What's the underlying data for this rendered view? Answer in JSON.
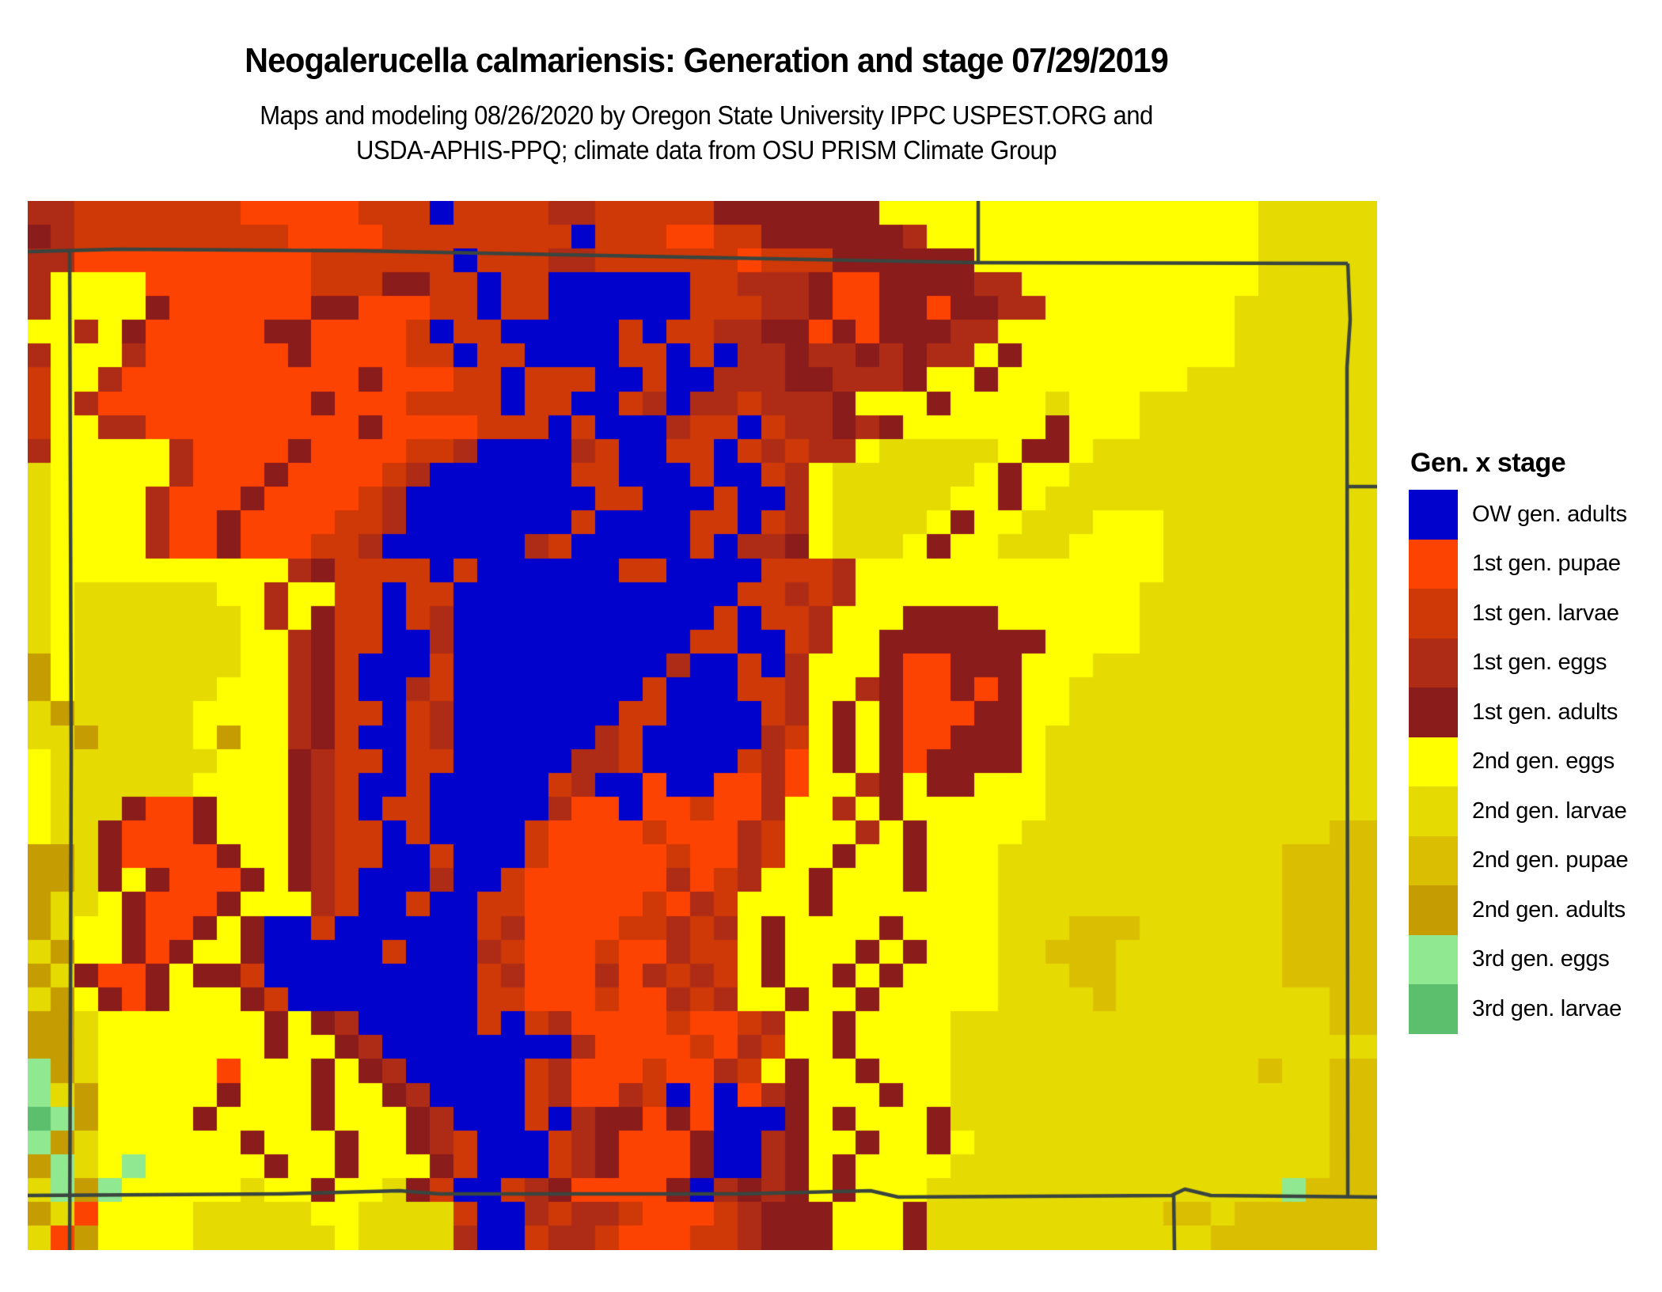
{
  "header": {
    "title": "Neogalerucella calmariensis: Generation and stage 07/29/2019",
    "subtitle_line1": "Maps and modeling 08/26/2020 by Oregon State University IPPC USPEST.ORG and",
    "subtitle_line2": "USDA-APHIS-PPQ; climate data from OSU PRISM Climate Group"
  },
  "legend": {
    "title": "Gen. x stage",
    "items": [
      {
        "label": "OW gen. adults",
        "color": "#0202CD",
        "palette_key": "B"
      },
      {
        "label": "1st gen. pupae",
        "color": "#FD4301",
        "palette_key": "P"
      },
      {
        "label": "1st gen. larvae",
        "color": "#CF3807",
        "palette_key": "L"
      },
      {
        "label": "1st gen. eggs",
        "color": "#AE2C16",
        "palette_key": "E"
      },
      {
        "label": "1st gen. adults",
        "color": "#8B1C1C",
        "palette_key": "A"
      },
      {
        "label": "2nd gen. eggs",
        "color": "#FFFF00",
        "palette_key": "y"
      },
      {
        "label": "2nd gen. larvae",
        "color": "#E6DA03",
        "palette_key": "l"
      },
      {
        "label": "2nd gen. pupae",
        "color": "#DABE02",
        "palette_key": "p"
      },
      {
        "label": "2nd gen. adults",
        "color": "#C59C02",
        "palette_key": "a"
      },
      {
        "label": "3rd gen. eggs",
        "color": "#90E890",
        "palette_key": "g"
      },
      {
        "label": "3rd gen. larvae",
        "color": "#5CBF6E",
        "palette_key": "G"
      }
    ]
  },
  "map": {
    "background": "#FFFFFF",
    "border_color": "#3A453F",
    "border_width": 4.5,
    "palette": {
      "B": "#0202CD",
      "P": "#FD4301",
      "L": "#CF3807",
      "E": "#AE2C16",
      "A": "#8B1C1C",
      "y": "#FFFF00",
      "l": "#E6DA03",
      "p": "#DABE02",
      "a": "#C59C02",
      "g": "#90E890",
      "G": "#5CBF6E"
    },
    "grid": {
      "cols": 57,
      "rows": 44,
      "rle_rows": [
        "2E7L5P3L1B4L2E5L7A16y5l",
        "1A1E9L4P8L1B3L2P2L6A1E14y5l",
        "2E10P6L1B3L2E6L1P3L6A12y5l",
        "1E4y7P3L2A2L1B2L6B2L3E1A2P4A2E10y5l",
        "1E4y1A6P2A3P2L1B2L6B3L2E1A2P2A1P2A2E8y6l",
        "2y1E1y1A5P2A4P1L1B2L5B1L1B2L2E2A1P1A1P3A2E10y6l",
        "1E3y1E6P1A4P2L1B2L4B2L1B1L1B2E1A2E1A1E1A2E1y1A9y6l",
        "1L2y1E10P1A3P2L1B3L2B1L2B3E2A3E1A2y1A8y8l",
        "1L1y1E9P1A3P4L1B2L2B1L1E1B2E1L3E1A3y1A4y1l3y10l",
        "1L2y2E9P1A4P3L1B1L3B1E2L1B1L2E1A1E1A6y1A3y10l",
        "1E5y1E4P1A4P2L1E4B1E1L2B2L1B1L1E1L2E1y5l1y2A1y12l",
        "1l5y1E3P1A4P1L1E6B2L3B1L2B1L1E1y6l1y1A2y13l",
        "1l4y1E3P1A4P1L1E8B2L3B1L2B1E1y5l2y1A1y14l",
        "1l4y1E2P1A4P2L1E7B1L4B2L1B1L1E1y4l1y1A2y3l3y9l",
        "1l4y1E2P1A3P2L1E6B1E1L5B1L1B2E1A1y3l1y1A2y3l4y9l",
        "1l10y1E1A4L1B1L6B2L4B3L1E13y9l",
        "1l1y6l2y1E2y2L1B2L12B2L1E1L1E12y10l",
        "1l1y7l1y1E1y1A2L1B1L1E11B1L1B2L1E3y4A6y10l",
        "1l1y7l2y1E1A2L2B1E10B2L2B1L1E2y1A6A4y10l",
        "1a1y7l2y1E1A1L3B1L9B1E2B1L1B1E3y1A2P3A3y12l",
        "1a1y6l3y1E1A1L2B1E1L8B1L3B2L1E2y1E1A2P1A1P1A2y13l",
        "1l1a5l4y1E1A2L1B1L1E7B2L4B1L1E1y1A1y1A3P2A2y13l",
        "2l1a4l1y1a2y1E1A1L2B1L1E6B1E1L5B1E1L1y1A1y1A2P3A1y14l",
        "1y7l3y1A1E2L1B2L5B2E1L4B1L1E1P1y1A1y1A1P4A1y14l",
        "1y6l4y1A1E1L2B1L5B1L1E2B1P2B2P1E1P2y1E1A1y2A3y14l",
        "1y3l1A2P1A3y1A1E1L1B2L2B3B1E2P1B2P1L2P1E2y1E1y1A6y15l",
        "1y2l1A3P1A3y1A1E2L1B1L4B1L4P1L3P1E1L3y1E1y1A4y13l2p",
        "2a1l1A4P1A2y1A1E2L2B1L1B2B1L5P1L2P1E1L2y1A2y1A3y12l4p",
        "2a1l1A1y1A3P1A1y1A1E1L3B1E2B1L6P1E1P1L1E2y1A3y1A3y12l4p",
        "1a2l1y1A3P1A3y1E1L2B1L2B2L5P1L1P1E1L3y1A7y12l4p",
        "1a1l2y1A2P1A1y1A2B1L4B2B1L1E4P2L1E1L1E1y1A4y1A4y3l3p6l4p",
        "1l1a2y1A1P1A2y1A5B1L3B1E1L3P1L2P1E2L1y1A3y1A1y1A3y2l3p7l4p",
        "1a1l1A2P1A1y2A1L9B1L1E3P1E1P1E1L1E1L1y1A2y1A1y1A4y3l2p7l4p",
        "1l1a1y1A1P1A3y1A1L8B2L3P1L2P1E1L1E2y1A2y1A5y4l1p9l2p",
        "2a1l7y1A1y1A1E5B1L1B1L1E4P1L2P1L1E2y1A4y16l2p",
        "2a1l7y1A2y1A1E8B1E4P1L1P1E1L2y1A4y18l2p",
        "1g1a1l5y1P1y2y1A1y1A1E4B1B1L1E3P1L2P1E1L1y1A2y1A3y13l1p2l2p",
        "1g1l1a5y1A3y1A2y1A1E4B1L1E2P1E1L1B1P1B1P1E1A3y1A2y16l2p",
        "1G1g1a4y1A4y1A3y1A1E3B1L1B1E2A1P1A1P1B2B1A1y1A3y1A16l2p",
        "1g1a1l6y1A3y1A2y1A1E1L3B1L1E1A3P1A2B1E1A2y1A2y1A1y15l2p",
        "1a1g1l1y1g5y1A2y1A3y1A1L3B1L1E1A3P1A1B1B1E1A1y1A3y1y16l2p",
        "1l1g1a1g1y4y1l2y1A2y1l1A1L2B1L1E1A4P1A1B1E1A1E1A1y1A2y1y15l1g1p",
        "1a1l1P1y3y2l3l2y1l3l1L2B1E1L2E1L3P1L1E3A1y2y1A10l2p1l6p",
        "1l1P1a4y3l3l1y4l1E2B1L2E1L1P2P2L1E3A3y1A12l1p6p"
      ]
    },
    "state_borders": [
      {
        "name": "north-line",
        "points": [
          [
            0,
            64
          ],
          [
            115,
            61
          ],
          [
            420,
            63
          ],
          [
            780,
            70
          ],
          [
            1201,
            78
          ],
          [
            1668,
            79
          ]
        ]
      },
      {
        "name": "wy-ne-line",
        "points": [
          [
            1201,
            0
          ],
          [
            1201,
            78
          ]
        ]
      },
      {
        "name": "west-line",
        "points": [
          [
            53,
            62
          ],
          [
            55,
            700
          ],
          [
            53,
            1326
          ]
        ]
      },
      {
        "name": "east-line",
        "points": [
          [
            1668,
            79
          ],
          [
            1671,
            150
          ],
          [
            1667,
            210
          ],
          [
            1668,
            1259
          ]
        ]
      },
      {
        "name": "ne-ks-line",
        "points": [
          [
            1668,
            361
          ],
          [
            1705,
            361
          ]
        ]
      },
      {
        "name": "south-line",
        "points": [
          [
            0,
            1257
          ],
          [
            320,
            1255
          ],
          [
            470,
            1251
          ],
          [
            520,
            1255
          ],
          [
            900,
            1255
          ],
          [
            1065,
            1251
          ],
          [
            1100,
            1259
          ],
          [
            1445,
            1257
          ],
          [
            1462,
            1249
          ],
          [
            1495,
            1257
          ],
          [
            1705,
            1259
          ]
        ]
      },
      {
        "name": "south-vertical-line",
        "points": [
          [
            1448,
            1257
          ],
          [
            1449,
            1326
          ]
        ]
      }
    ]
  }
}
